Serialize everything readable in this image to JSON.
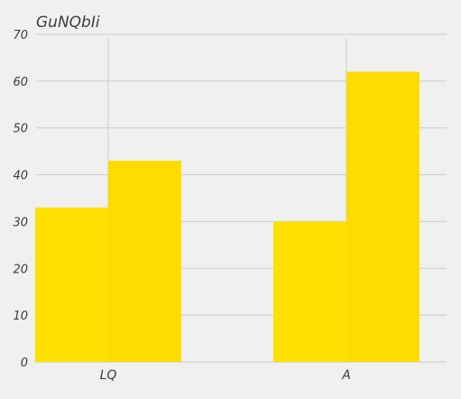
{
  "chart_data": {
    "type": "bar",
    "title": "GuNQbIi",
    "categories": [
      "LQ",
      "A"
    ],
    "series": [
      {
        "values": [
          33,
          30
        ],
        "color": "#ffe000"
      },
      {
        "values": [
          43,
          62
        ],
        "color": "#ffdc00"
      }
    ],
    "ylim": [
      0,
      70
    ],
    "yticks": [
      0,
      10,
      20,
      30,
      40,
      50,
      60,
      70
    ],
    "grid": true,
    "legend": "none",
    "colors": {
      "background": "#f0f0f0",
      "grid": "#cbcbcb",
      "text": "#3c3c3c"
    }
  }
}
